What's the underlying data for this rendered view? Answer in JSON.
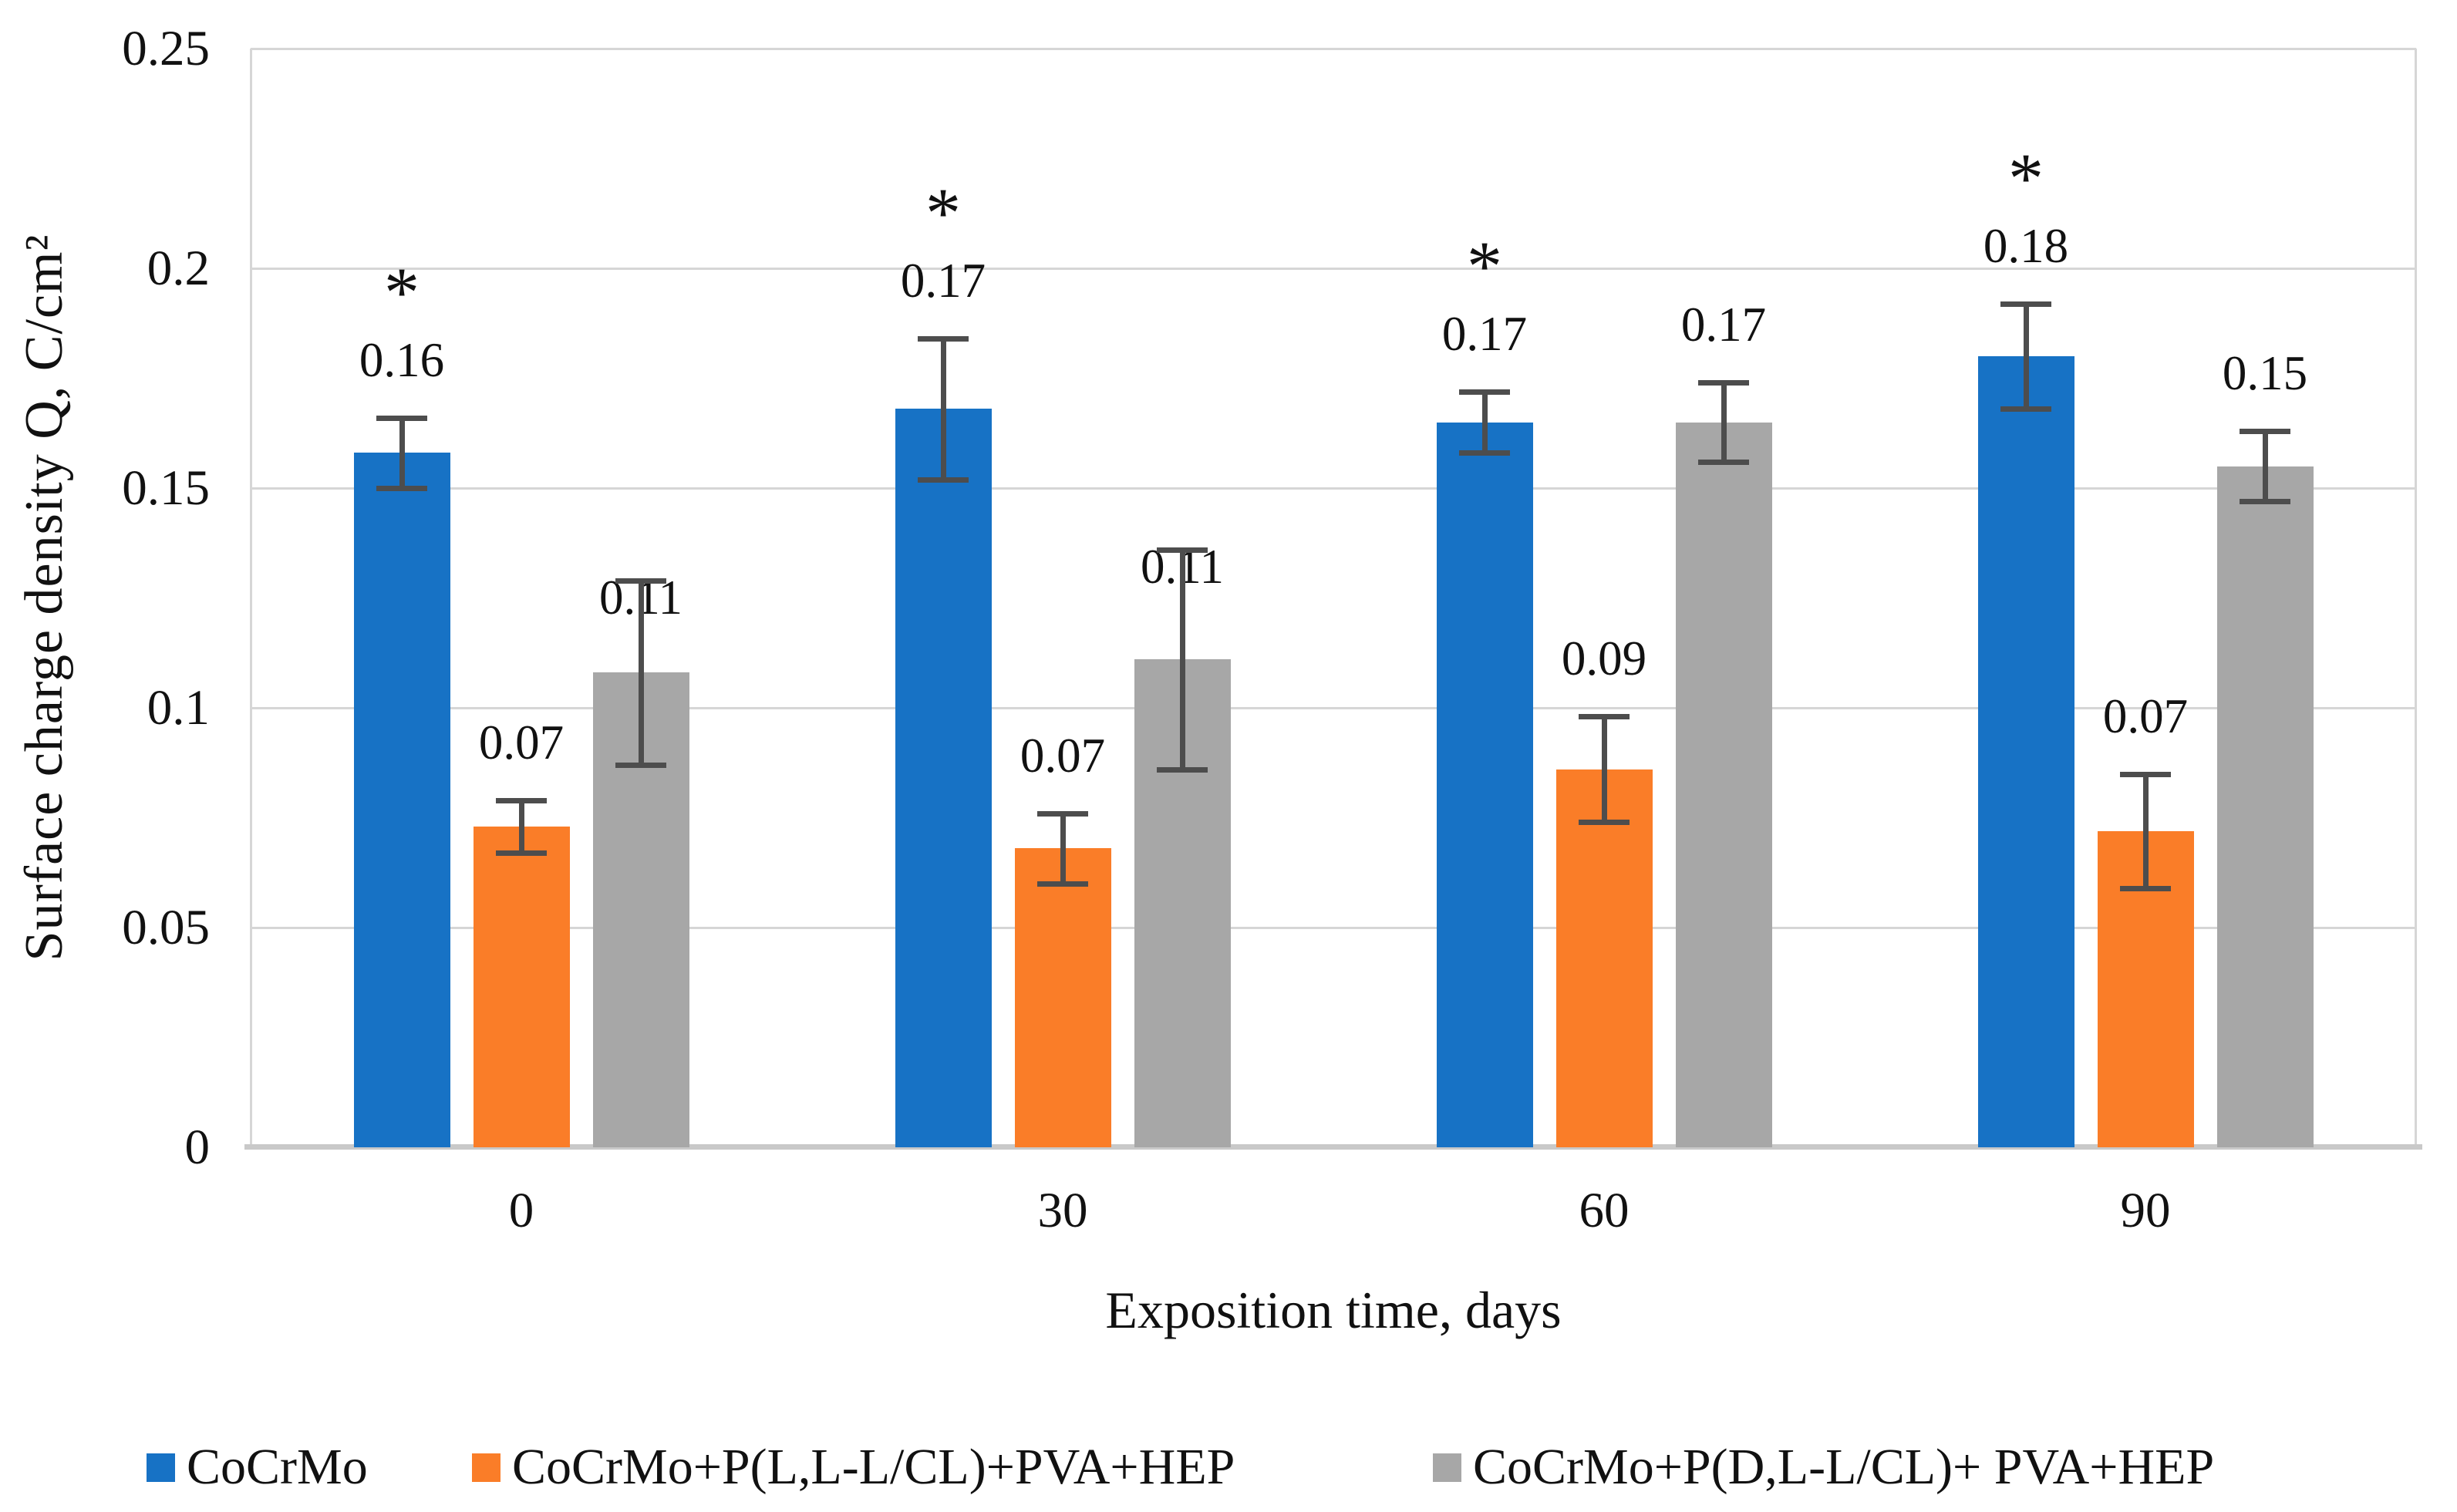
{
  "chart_data": {
    "type": "bar",
    "title": "",
    "xlabel": "Exposition time, days",
    "ylabel": "Surface charge density Q, C/cm²",
    "categories": [
      "0",
      "30",
      "60",
      "90"
    ],
    "y_ticks": [
      "0",
      "0.05",
      "0.1",
      "0.15",
      "0.2",
      "0.25"
    ],
    "ylim": [
      0,
      0.25
    ],
    "grid": true,
    "legend_position": "bottom",
    "error_bar_color": "#4d4d4d",
    "significance_symbol": "*",
    "series": [
      {
        "name": "CoCrMo",
        "color": "#1772c5",
        "values": [
          0.158,
          0.168,
          0.165,
          0.18
        ],
        "errors": [
          0.008,
          0.016,
          0.007,
          0.012
        ],
        "data_labels": [
          "0.16",
          "0.17",
          "0.17",
          "0.18"
        ],
        "significance": [
          "*",
          "*",
          "*",
          "*"
        ]
      },
      {
        "name": "CoCrMo+P(L,L-L/CL)+PVA+HEP",
        "color": "#fa7d28",
        "values": [
          0.073,
          0.068,
          0.086,
          0.072
        ],
        "errors": [
          0.006,
          0.008,
          0.012,
          0.013
        ],
        "data_labels": [
          "0.07",
          "0.07",
          "0.09",
          "0.07"
        ],
        "significance": [
          "",
          "",
          "",
          ""
        ]
      },
      {
        "name": "CoCrMo+P(D,L-L/CL)+ PVA+HEP",
        "color": "#a7a7a7",
        "values": [
          0.108,
          0.111,
          0.165,
          0.155
        ],
        "errors": [
          0.021,
          0.025,
          0.009,
          0.008
        ],
        "data_labels": [
          "0.11",
          "0.11",
          "0.17",
          "0.15"
        ],
        "significance": [
          "",
          "",
          "",
          ""
        ]
      }
    ]
  }
}
